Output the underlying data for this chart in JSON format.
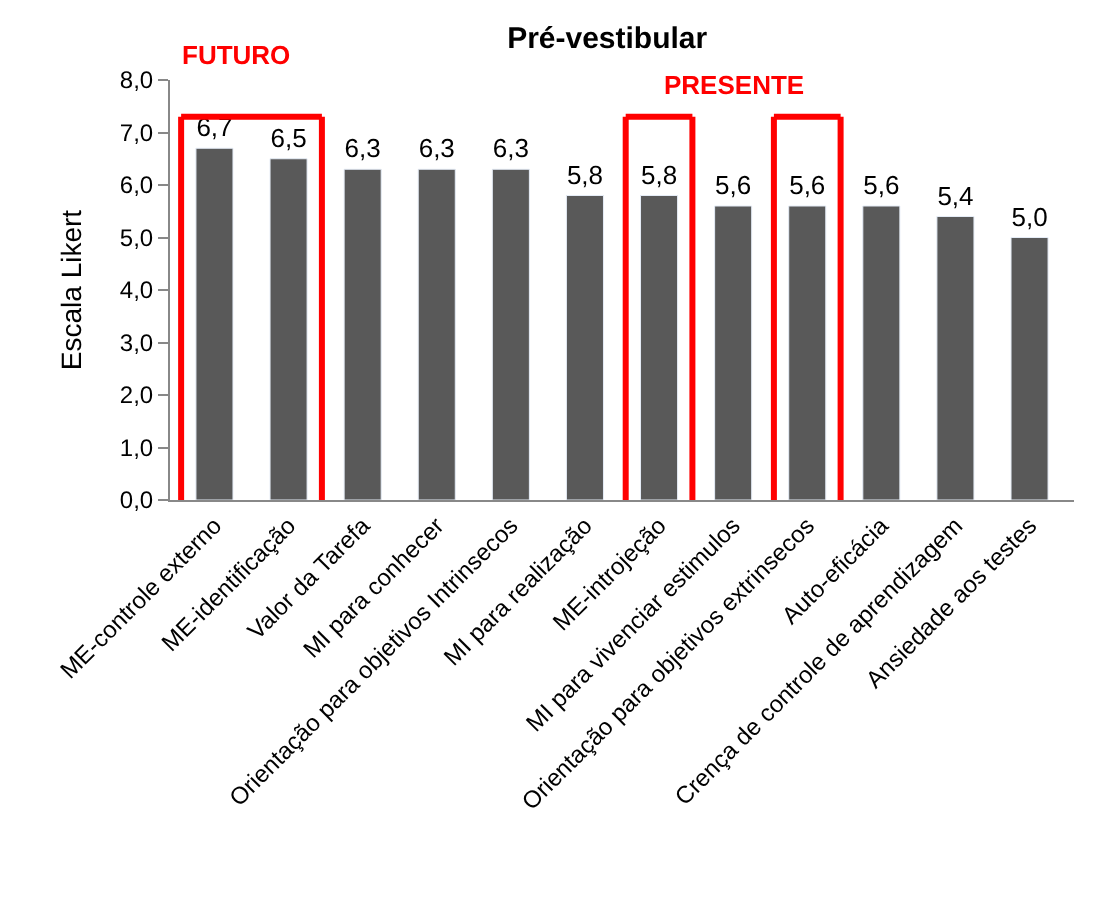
{
  "chart_data": {
    "type": "bar",
    "title": "Pré-vestibular",
    "ylabel": "Escala Likert",
    "categories": [
      "ME-controle externo",
      "ME-identificação",
      "Valor da Tarefa",
      "MI para conhecer",
      "Orientação para objetivos Intrinsecos",
      "MI para realização",
      "ME-introjeção",
      "MI para vivenciar estimulos",
      "Orientação para objetivos extrinsecos",
      "Auto-eficácia",
      "Crença de controle de aprendizagem",
      "Ansiedade aos testes"
    ],
    "values": [
      6.7,
      6.5,
      6.3,
      6.3,
      6.3,
      5.8,
      5.8,
      5.6,
      5.6,
      5.6,
      5.4,
      5.0
    ],
    "value_labels": [
      "6,7",
      "6,5",
      "6,3",
      "6,3",
      "6,3",
      "5,8",
      "5,8",
      "5,6",
      "5,6",
      "5,6",
      "5,4",
      "5,0"
    ],
    "color": "#595959",
    "ylim": [
      0,
      8
    ],
    "yticks": [
      {
        "value": 0,
        "label": "0,0"
      },
      {
        "value": 1,
        "label": "1,0"
      },
      {
        "value": 2,
        "label": "2,0"
      },
      {
        "value": 3,
        "label": "3,0"
      },
      {
        "value": 4,
        "label": "4,0"
      },
      {
        "value": 5,
        "label": "5,0"
      },
      {
        "value": 6,
        "label": "6,0"
      },
      {
        "value": 7,
        "label": "7,0"
      },
      {
        "value": 8,
        "label": "8,0"
      }
    ],
    "annotations": [
      "FUTURO",
      "PRESENTE"
    ]
  }
}
